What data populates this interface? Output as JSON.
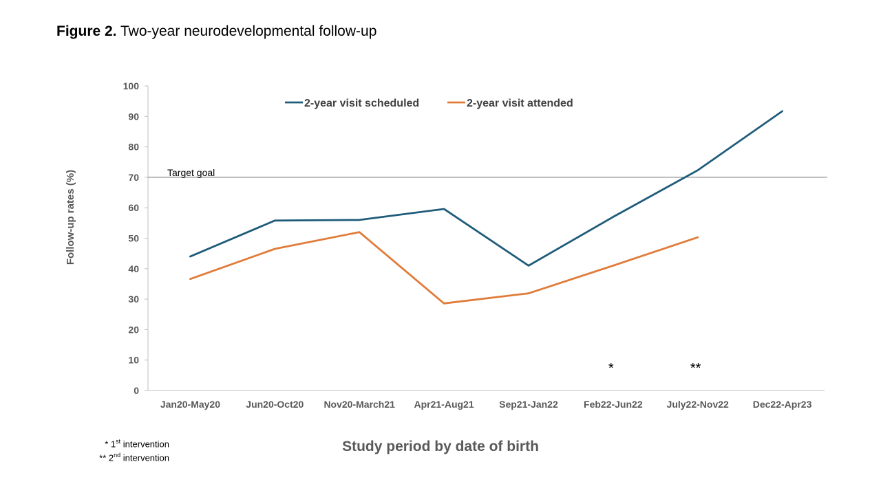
{
  "figure": {
    "label": "Figure 2.",
    "caption": "Two-year neurodevelopmental follow-up"
  },
  "footnotes": [
    {
      "marker": "*",
      "ordinal": "1",
      "suffix": "st",
      "text": "intervention"
    },
    {
      "marker": "**",
      "ordinal": "2",
      "suffix": "nd",
      "text": "intervention"
    }
  ],
  "chart_data": {
    "type": "line",
    "title": "",
    "xlabel": "Study period by date of birth",
    "ylabel": "Follow-up rates (%)",
    "ylim": [
      0,
      100
    ],
    "yticks": [
      0,
      10,
      20,
      30,
      40,
      50,
      60,
      70,
      80,
      90,
      100
    ],
    "categories": [
      "Jan20-May20",
      "Jun20-Oct20",
      "Nov20-March21",
      "Apr21-Aug21",
      "Sep21-Jan22",
      "Feb22-Jun22",
      "July22-Nov22",
      "Dec22-Apr23"
    ],
    "series": [
      {
        "name": "2-year visit scheduled",
        "color": "#1f5c7a",
        "values": [
          44,
          55.8,
          56,
          59.6,
          41,
          57,
          72.3,
          91.7
        ]
      },
      {
        "name": "2-year visit attended",
        "color": "#e07b39",
        "values": [
          36.6,
          46.5,
          52,
          28.6,
          31.9,
          41,
          50.3,
          null
        ]
      }
    ],
    "reference_line": {
      "label": "Target goal",
      "value": 70
    },
    "annotations": [
      {
        "category": "Feb22-Jun22",
        "text": "*"
      },
      {
        "category": "July22-Nov22",
        "text": "**"
      }
    ],
    "legend": "top-center",
    "grid": false
  }
}
